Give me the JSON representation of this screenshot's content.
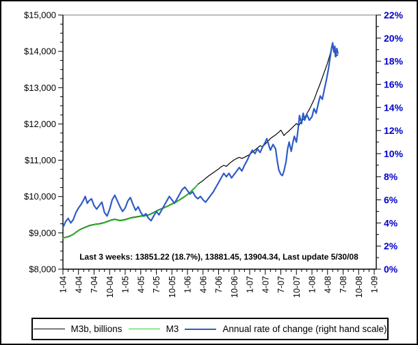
{
  "page": {
    "background": "#FFFFFF",
    "border_color": "#000000"
  },
  "chart_data": {
    "type": "line",
    "title": "",
    "annotation": "Last 3 weeks: 13851.22 (18.7%), 13881.45, 13904.34, Last update 5/30/08",
    "legend_position": "bottom",
    "grid": false,
    "left_axis": {
      "min": 8000,
      "max": 15000,
      "major_step": 1000,
      "minor_step": 250,
      "tick_labels": [
        "$8,000",
        "$9,000",
        "$10,000",
        "$11,000",
        "$12,000",
        "$13,000",
        "$14,000",
        "$15,000"
      ],
      "color": "#000000"
    },
    "right_axis": {
      "min": 0,
      "max": 22,
      "major_step": 2,
      "minor_step": 1,
      "tick_labels": [
        "0%",
        "2%",
        "4%",
        "6%",
        "8%",
        "10%",
        "12%",
        "14%",
        "16%",
        "18%",
        "20%",
        "22%"
      ],
      "color": "#0000CC"
    },
    "x_axis": {
      "unit": "months since Jan 2004",
      "min": 0,
      "max": 60,
      "label_step": 3,
      "minor_step": 1,
      "labels": [
        "1-04",
        "4-04",
        "7-04",
        "10-04",
        "1-05",
        "4-05",
        "7-05",
        "10-05",
        "1-06",
        "4-06",
        "7-06",
        "10-06",
        "1-07",
        "4-07",
        "7-07",
        "10-07",
        "1-08",
        "4-08",
        "7-08",
        "10-08",
        "1-09"
      ]
    },
    "series": [
      {
        "name": "M3b, billions",
        "axis": "left",
        "color": "#000000",
        "stroke_width": 1.2,
        "points": [
          [
            0,
            8870
          ],
          [
            0.5,
            8880
          ],
          [
            1,
            8900
          ],
          [
            1.5,
            8930
          ],
          [
            2,
            8965
          ],
          [
            2.5,
            9020
          ],
          [
            3,
            9070
          ],
          [
            3.5,
            9110
          ],
          [
            4,
            9140
          ],
          [
            4.5,
            9170
          ],
          [
            5,
            9200
          ],
          [
            5.5,
            9220
          ],
          [
            6,
            9235
          ],
          [
            6.5,
            9245
          ],
          [
            7,
            9255
          ],
          [
            7.5,
            9270
          ],
          [
            8,
            9290
          ],
          [
            8.5,
            9315
          ],
          [
            9,
            9340
          ],
          [
            9.5,
            9365
          ],
          [
            10,
            9380
          ],
          [
            10.5,
            9360
          ],
          [
            11,
            9345
          ],
          [
            11.5,
            9355
          ],
          [
            12,
            9370
          ],
          [
            12.5,
            9395
          ],
          [
            13,
            9415
          ],
          [
            13.5,
            9430
          ],
          [
            14,
            9440
          ],
          [
            14.5,
            9455
          ],
          [
            15,
            9465
          ],
          [
            15.5,
            9475
          ],
          [
            16,
            9480
          ],
          [
            16.5,
            9500
          ],
          [
            17,
            9530
          ],
          [
            17.5,
            9565
          ],
          [
            18,
            9605
          ],
          [
            18.5,
            9640
          ],
          [
            19,
            9670
          ],
          [
            19.5,
            9700
          ],
          [
            20,
            9730
          ],
          [
            20.5,
            9765
          ],
          [
            21,
            9800
          ],
          [
            21.5,
            9835
          ],
          [
            22,
            9870
          ],
          [
            22.5,
            9915
          ],
          [
            23,
            9960
          ],
          [
            23.5,
            10010
          ],
          [
            24,
            10060
          ],
          [
            24.5,
            10120
          ],
          [
            25,
            10190
          ],
          [
            25.5,
            10260
          ],
          [
            26,
            10340
          ],
          [
            26.5,
            10390
          ],
          [
            27,
            10440
          ],
          [
            27.5,
            10500
          ],
          [
            28,
            10560
          ],
          [
            28.5,
            10610
          ],
          [
            29,
            10660
          ],
          [
            29.5,
            10710
          ],
          [
            30,
            10760
          ],
          [
            30.5,
            10820
          ],
          [
            31,
            10860
          ],
          [
            31.5,
            10830
          ],
          [
            32,
            10900
          ],
          [
            32.5,
            10960
          ],
          [
            33,
            11010
          ],
          [
            33.5,
            11050
          ],
          [
            34,
            11080
          ],
          [
            34.5,
            11050
          ],
          [
            35,
            11080
          ],
          [
            35.5,
            11120
          ],
          [
            36,
            11160
          ],
          [
            36.5,
            11220
          ],
          [
            37,
            11280
          ],
          [
            37.5,
            11340
          ],
          [
            38,
            11400
          ],
          [
            38.5,
            11370
          ],
          [
            39,
            11450
          ],
          [
            39.5,
            11520
          ],
          [
            40,
            11600
          ],
          [
            40.5,
            11650
          ],
          [
            41,
            11700
          ],
          [
            41.5,
            11760
          ],
          [
            42,
            11830
          ],
          [
            42.3,
            11760
          ],
          [
            42.6,
            11680
          ],
          [
            43,
            11740
          ],
          [
            43.5,
            11800
          ],
          [
            44,
            11870
          ],
          [
            44.5,
            11940
          ],
          [
            45,
            12010
          ],
          [
            45.5,
            11960
          ],
          [
            46,
            12080
          ],
          [
            46.5,
            12150
          ],
          [
            47,
            12280
          ],
          [
            47.5,
            12400
          ],
          [
            48,
            12550
          ],
          [
            48.5,
            12700
          ],
          [
            49,
            12900
          ],
          [
            49.5,
            13080
          ],
          [
            50,
            13280
          ],
          [
            50.5,
            13480
          ],
          [
            51,
            13680
          ],
          [
            51.3,
            13820
          ],
          [
            51.6,
            13980
          ],
          [
            51.9,
            14150
          ],
          [
            52.1,
            14060
          ],
          [
            52.3,
            14120
          ],
          [
            52.5,
            13851.22
          ],
          [
            52.75,
            13881.45
          ],
          [
            53,
            13904.34
          ]
        ]
      },
      {
        "name": "M3",
        "axis": "left",
        "color": "#33CC33",
        "stroke_width": 1.6,
        "points": [
          [
            0,
            8858
          ],
          [
            0.5,
            8868
          ],
          [
            1,
            8885
          ],
          [
            1.5,
            8915
          ],
          [
            2,
            8950
          ],
          [
            2.5,
            9005
          ],
          [
            3,
            9055
          ],
          [
            3.5,
            9095
          ],
          [
            4,
            9125
          ],
          [
            4.5,
            9155
          ],
          [
            5,
            9185
          ],
          [
            5.5,
            9205
          ],
          [
            6,
            9220
          ],
          [
            6.5,
            9230
          ],
          [
            7,
            9240
          ],
          [
            7.5,
            9255
          ],
          [
            8,
            9275
          ],
          [
            8.5,
            9300
          ],
          [
            9,
            9325
          ],
          [
            9.5,
            9350
          ],
          [
            10,
            9365
          ],
          [
            10.5,
            9345
          ],
          [
            11,
            9330
          ],
          [
            11.5,
            9340
          ],
          [
            12,
            9355
          ],
          [
            12.5,
            9380
          ],
          [
            13,
            9400
          ],
          [
            13.5,
            9415
          ],
          [
            14,
            9425
          ],
          [
            14.5,
            9440
          ],
          [
            15,
            9450
          ],
          [
            15.5,
            9460
          ],
          [
            16,
            9465
          ],
          [
            16.5,
            9485
          ],
          [
            17,
            9515
          ],
          [
            17.5,
            9550
          ],
          [
            18,
            9590
          ],
          [
            18.5,
            9625
          ],
          [
            19,
            9655
          ],
          [
            19.5,
            9685
          ],
          [
            20,
            9715
          ],
          [
            20.5,
            9750
          ],
          [
            21,
            9785
          ],
          [
            21.5,
            9820
          ],
          [
            22,
            9855
          ],
          [
            22.5,
            9900
          ],
          [
            23,
            9945
          ],
          [
            23.5,
            9995
          ],
          [
            24,
            10045
          ],
          [
            24.5,
            10105
          ],
          [
            25,
            10175
          ],
          [
            25.5,
            10245
          ],
          [
            26,
            10330
          ]
        ]
      },
      {
        "name": "Annual rate of change (right hand scale)",
        "axis": "right",
        "color": "#2E5BC7",
        "stroke_width": 2.2,
        "points": [
          [
            0,
            3.6
          ],
          [
            0.5,
            4.1
          ],
          [
            1,
            4.4
          ],
          [
            1.5,
            4.0
          ],
          [
            2,
            4.3
          ],
          [
            2.5,
            4.9
          ],
          [
            3,
            5.3
          ],
          [
            3.5,
            5.6
          ],
          [
            4,
            6.0
          ],
          [
            4.3,
            6.3
          ],
          [
            4.7,
            5.7
          ],
          [
            5,
            5.9
          ],
          [
            5.5,
            6.1
          ],
          [
            6,
            5.5
          ],
          [
            6.5,
            5.2
          ],
          [
            7,
            5.5
          ],
          [
            7.5,
            5.8
          ],
          [
            8,
            4.9
          ],
          [
            8.5,
            4.6
          ],
          [
            9,
            5.2
          ],
          [
            9.5,
            6.0
          ],
          [
            10,
            6.4
          ],
          [
            10.5,
            5.9
          ],
          [
            11,
            5.4
          ],
          [
            11.5,
            5.0
          ],
          [
            12,
            5.3
          ],
          [
            12.5,
            5.9
          ],
          [
            13,
            6.2
          ],
          [
            13.5,
            5.6
          ],
          [
            14,
            5.1
          ],
          [
            14.5,
            5.4
          ],
          [
            15,
            4.9
          ],
          [
            15.5,
            4.6
          ],
          [
            16,
            4.8
          ],
          [
            16.5,
            4.4
          ],
          [
            17,
            4.2
          ],
          [
            17.5,
            4.6
          ],
          [
            18,
            5.0
          ],
          [
            18.5,
            4.7
          ],
          [
            19,
            5.1
          ],
          [
            19.5,
            5.5
          ],
          [
            20,
            5.9
          ],
          [
            20.5,
            6.3
          ],
          [
            21,
            6.0
          ],
          [
            21.5,
            5.7
          ],
          [
            22,
            6.1
          ],
          [
            22.5,
            6.5
          ],
          [
            23,
            6.9
          ],
          [
            23.5,
            7.1
          ],
          [
            24,
            6.8
          ],
          [
            24.5,
            6.5
          ],
          [
            25,
            6.7
          ],
          [
            25.5,
            6.3
          ],
          [
            26,
            6.1
          ],
          [
            26.5,
            6.3
          ],
          [
            27,
            6.0
          ],
          [
            27.5,
            5.8
          ],
          [
            28,
            6.1
          ],
          [
            28.5,
            6.4
          ],
          [
            29,
            6.7
          ],
          [
            29.5,
            7.1
          ],
          [
            30,
            7.5
          ],
          [
            30.5,
            7.9
          ],
          [
            31,
            8.3
          ],
          [
            31.5,
            8.0
          ],
          [
            32,
            8.3
          ],
          [
            32.5,
            7.9
          ],
          [
            33,
            8.2
          ],
          [
            33.5,
            8.5
          ],
          [
            34,
            8.8
          ],
          [
            34.5,
            8.5
          ],
          [
            35,
            9.0
          ],
          [
            35.5,
            9.4
          ],
          [
            36,
            9.9
          ],
          [
            36.5,
            10.3
          ],
          [
            37,
            10.0
          ],
          [
            37.5,
            10.4
          ],
          [
            38,
            10.1
          ],
          [
            38.5,
            10.6
          ],
          [
            39,
            11.0
          ],
          [
            39.3,
            11.3
          ],
          [
            39.7,
            10.7
          ],
          [
            40,
            10.3
          ],
          [
            40.5,
            10.8
          ],
          [
            41,
            10.4
          ],
          [
            41.3,
            9.4
          ],
          [
            41.6,
            8.6
          ],
          [
            42,
            8.2
          ],
          [
            42.3,
            8.1
          ],
          [
            42.6,
            8.5
          ],
          [
            43,
            9.3
          ],
          [
            43.3,
            10.4
          ],
          [
            43.6,
            11.0
          ],
          [
            44,
            10.2
          ],
          [
            44.3,
            10.9
          ],
          [
            44.6,
            11.5
          ],
          [
            45,
            11.0
          ],
          [
            45.3,
            12.0
          ],
          [
            45.6,
            13.3
          ],
          [
            46,
            12.6
          ],
          [
            46.3,
            13.5
          ],
          [
            46.6,
            12.9
          ],
          [
            47,
            13.4
          ],
          [
            47.5,
            12.9
          ],
          [
            48,
            13.2
          ],
          [
            48.4,
            13.9
          ],
          [
            48.8,
            13.5
          ],
          [
            49.2,
            14.3
          ],
          [
            49.6,
            15.0
          ],
          [
            50,
            14.7
          ],
          [
            50.4,
            15.6
          ],
          [
            50.8,
            16.4
          ],
          [
            51.2,
            17.4
          ],
          [
            51.5,
            18.3
          ],
          [
            51.8,
            19.2
          ],
          [
            52,
            19.6
          ],
          [
            52.2,
            18.8
          ],
          [
            52.4,
            19.3
          ],
          [
            52.6,
            18.4
          ],
          [
            52.8,
            19.1
          ],
          [
            53,
            18.7
          ]
        ]
      }
    ]
  }
}
